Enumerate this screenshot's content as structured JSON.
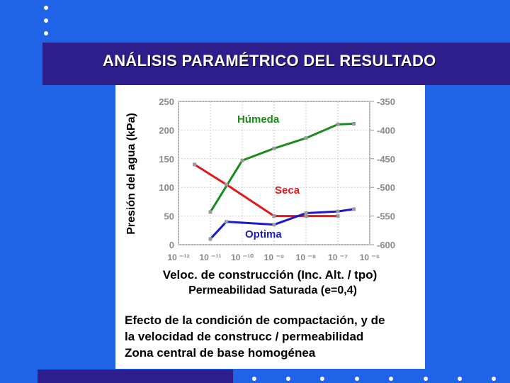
{
  "slide": {
    "title": "ANÁLISIS PARAMÉTRICO DEL RESULTADO",
    "caption": [
      "Efecto de la condición de compactación, y de",
      "la velocidad de construcc / permeabilidad",
      "Zona central de base homogénea"
    ]
  },
  "colors": {
    "background": "#1f63e6",
    "band": "#2e1e8c",
    "humeda": "#1a8a1a",
    "seca": "#e01818",
    "optima": "#1a1acc"
  },
  "chart_data": {
    "type": "line",
    "ylabel": "Presión del agua (kPa)",
    "xlabel": "Veloc. de construcción (Inc. Alt. / tpo)",
    "xlabel2": "Permeabilidad Saturada (e=0,4)",
    "ylim": [
      0,
      250
    ],
    "y_ticks": [
      "0",
      "50",
      "100",
      "150",
      "200",
      "250"
    ],
    "y2lim": [
      -600,
      -350
    ],
    "y2_ticks": [
      "-600",
      "-550",
      "-500",
      "-450",
      "-400",
      "-350"
    ],
    "x_ticks": [
      "10 ⁻¹²",
      "10 ⁻¹¹",
      "10 ⁻¹⁰",
      "10 ⁻⁹",
      "10 ⁻⁸",
      "10 ⁻⁷",
      "10 ⁻⁶"
    ],
    "x_tick_labels_raw": "10⁻¹²10⁻¹¹ 1 10⁻¹⁰ 10⁻⁹ 10⁻⁸ 10⁻⁷",
    "grid": true,
    "series": [
      {
        "name": "Húmeda",
        "axis": "right",
        "x": [
          -11,
          -10,
          -9,
          -8,
          -7,
          -6.5
        ],
        "y": [
          -543,
          -453,
          -432,
          -414,
          -390,
          -389
        ]
      },
      {
        "name": "Seca",
        "axis": "left",
        "x": [
          -11.5,
          -10.5,
          -9,
          -8,
          -7
        ],
        "y": [
          140,
          105,
          50,
          50,
          50
        ]
      },
      {
        "name": "Optima",
        "axis": "left",
        "x": [
          -11,
          -10.5,
          -9,
          -8,
          -7,
          -6.5
        ],
        "y": [
          10,
          40,
          35,
          55,
          58,
          62
        ]
      }
    ]
  }
}
